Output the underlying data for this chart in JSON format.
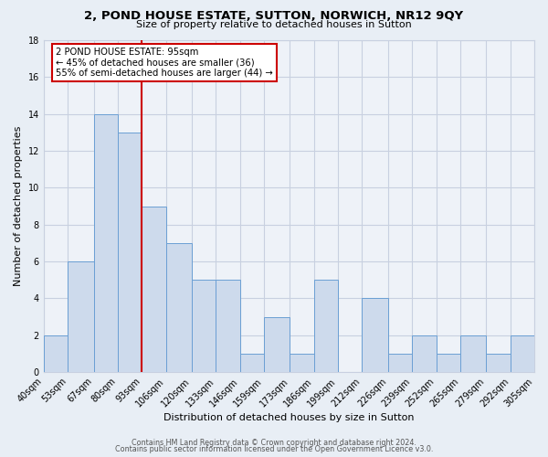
{
  "title": "2, POND HOUSE ESTATE, SUTTON, NORWICH, NR12 9QY",
  "subtitle": "Size of property relative to detached houses in Sutton",
  "xlabel": "Distribution of detached houses by size in Sutton",
  "ylabel": "Number of detached properties",
  "footer_line1": "Contains HM Land Registry data © Crown copyright and database right 2024.",
  "footer_line2": "Contains public sector information licensed under the Open Government Licence v3.0.",
  "bin_edges": [
    40,
    53,
    67,
    80,
    93,
    106,
    120,
    133,
    146,
    159,
    173,
    186,
    199,
    212,
    226,
    239,
    252,
    265,
    279,
    292,
    305
  ],
  "bin_labels": [
    "40sqm",
    "53sqm",
    "67sqm",
    "80sqm",
    "93sqm",
    "106sqm",
    "120sqm",
    "133sqm",
    "146sqm",
    "159sqm",
    "173sqm",
    "186sqm",
    "199sqm",
    "212sqm",
    "226sqm",
    "239sqm",
    "252sqm",
    "265sqm",
    "279sqm",
    "292sqm",
    "305sqm"
  ],
  "counts": [
    2,
    6,
    14,
    13,
    9,
    7,
    5,
    5,
    1,
    3,
    1,
    5,
    0,
    4,
    1,
    2,
    1,
    2,
    1,
    2
  ],
  "bar_facecolor": "#cddaec",
  "bar_edgecolor": "#6b9fd4",
  "grid_color": "#c8d0e0",
  "property_line_x": 93,
  "annotation_text": "2 POND HOUSE ESTATE: 95sqm\n← 45% of detached houses are smaller (36)\n55% of semi-detached houses are larger (44) →",
  "annotation_box_facecolor": "#ffffff",
  "annotation_box_edgecolor": "#cc0000",
  "ylim": [
    0,
    18
  ],
  "yticks": [
    0,
    2,
    4,
    6,
    8,
    10,
    12,
    14,
    16,
    18
  ],
  "bg_color": "#e8eef5",
  "plot_bg_color": "#eef2f8",
  "title_fontsize": 9.5,
  "subtitle_fontsize": 8.0,
  "xlabel_fontsize": 8.0,
  "ylabel_fontsize": 8.0,
  "tick_fontsize": 7.0,
  "footer_fontsize": 5.8,
  "annotation_fontsize": 7.2
}
